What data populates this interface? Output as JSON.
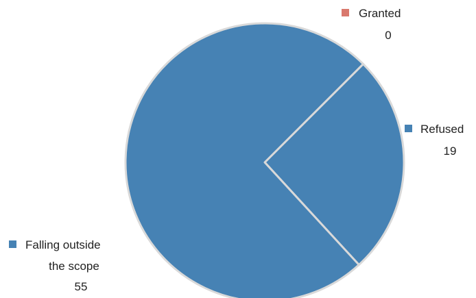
{
  "chart_data": {
    "type": "pie",
    "title": "",
    "categories": [
      "Granted",
      "Refused",
      "Falling outside the scope"
    ],
    "label_lines": [
      [
        "Granted"
      ],
      [
        "Refused"
      ],
      [
        "Falling outside",
        "the scope"
      ]
    ],
    "values": [
      0,
      19,
      55
    ],
    "value_labels": [
      "0",
      "19",
      "55"
    ],
    "colors": [
      "#d9786d",
      "#4682b4",
      "#4682b4"
    ],
    "slice_border_color": "#d9d9d9",
    "legend": "data labels with markers beside each slice"
  }
}
